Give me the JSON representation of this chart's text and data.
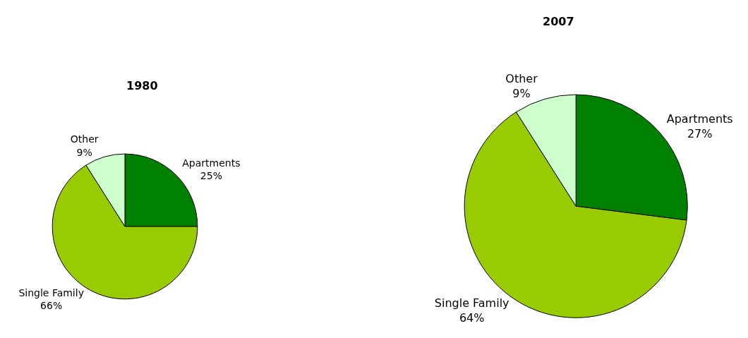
{
  "chart_data": [
    {
      "type": "pie",
      "title": "1980",
      "categories": [
        "Apartments",
        "Single Family",
        "Other"
      ],
      "values": [
        25,
        66,
        9
      ],
      "colors": [
        "#008000",
        "#99cc00",
        "#ccffcc"
      ],
      "value_labels": [
        "25%",
        "66%",
        "9%"
      ]
    },
    {
      "type": "pie",
      "title": "2007",
      "categories": [
        "Apartments",
        "Single Family",
        "Other"
      ],
      "values": [
        27,
        64,
        9
      ],
      "colors": [
        "#008000",
        "#99cc00",
        "#ccffcc"
      ],
      "value_labels": [
        "27%",
        "64%",
        "9%"
      ]
    }
  ]
}
